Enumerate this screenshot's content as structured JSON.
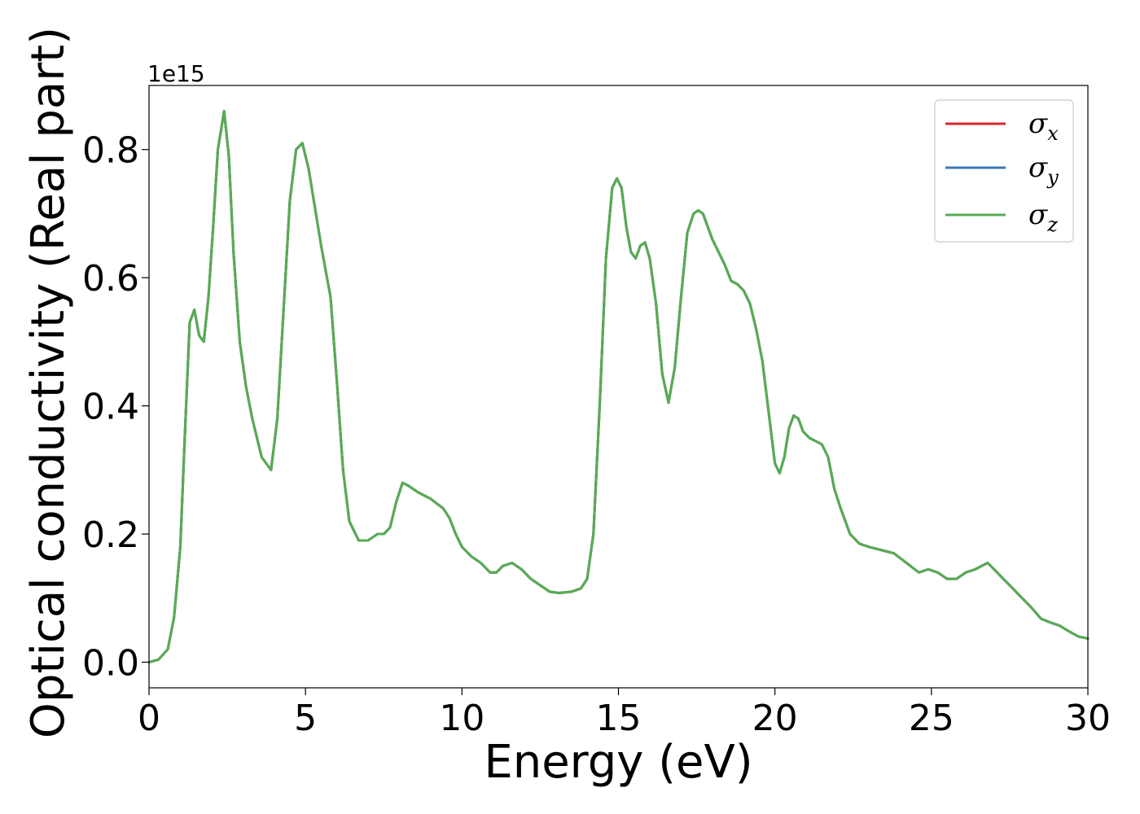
{
  "chart_data": {
    "type": "line",
    "xlabel": "Energy (eV)",
    "ylabel": "Optical conductivity (Real part)",
    "y_offset_label": "1e15",
    "xlim": [
      0,
      30
    ],
    "ylim": [
      -0.04,
      0.9
    ],
    "xticks": [
      0,
      5,
      10,
      15,
      20,
      25,
      30
    ],
    "xtick_labels": [
      "0",
      "5",
      "10",
      "15",
      "20",
      "25",
      "30"
    ],
    "yticks": [
      0.0,
      0.2,
      0.4,
      0.6,
      0.8
    ],
    "ytick_labels": [
      "0.0",
      "0.2",
      "0.4",
      "0.6",
      "0.8"
    ],
    "grid": false,
    "legend_position": "top-right",
    "series": [
      {
        "name": "σx",
        "symbol": "σ",
        "subscript": "x",
        "color": "#d62728",
        "data_ref": "shared"
      },
      {
        "name": "σy",
        "symbol": "σ",
        "subscript": "y",
        "color": "#3a78b5",
        "data_ref": "shared"
      },
      {
        "name": "σz",
        "symbol": "σ",
        "subscript": "z",
        "color": "#57ac52",
        "data_ref": "shared"
      }
    ],
    "x": [
      0,
      0.3,
      0.6,
      0.8,
      1.0,
      1.15,
      1.3,
      1.45,
      1.6,
      1.75,
      1.9,
      2.05,
      2.2,
      2.4,
      2.55,
      2.7,
      2.9,
      3.1,
      3.3,
      3.6,
      3.9,
      4.1,
      4.3,
      4.5,
      4.7,
      4.9,
      5.1,
      5.3,
      5.5,
      5.8,
      6.0,
      6.2,
      6.4,
      6.7,
      7.0,
      7.3,
      7.5,
      7.7,
      7.9,
      8.1,
      8.3,
      8.6,
      9.0,
      9.4,
      9.6,
      9.8,
      10.0,
      10.3,
      10.6,
      10.9,
      11.1,
      11.3,
      11.6,
      11.9,
      12.2,
      12.5,
      12.8,
      13.1,
      13.5,
      13.8,
      14.0,
      14.2,
      14.4,
      14.6,
      14.8,
      14.95,
      15.1,
      15.25,
      15.4,
      15.55,
      15.7,
      15.85,
      16.0,
      16.2,
      16.4,
      16.6,
      16.8,
      17.0,
      17.2,
      17.4,
      17.55,
      17.7,
      17.85,
      18.0,
      18.2,
      18.4,
      18.6,
      18.8,
      19.0,
      19.2,
      19.4,
      19.6,
      19.8,
      20.0,
      20.15,
      20.3,
      20.45,
      20.6,
      20.75,
      20.9,
      21.1,
      21.3,
      21.5,
      21.7,
      21.9,
      22.1,
      22.4,
      22.7,
      23.0,
      23.4,
      23.8,
      24.2,
      24.6,
      24.9,
      25.2,
      25.5,
      25.8,
      26.1,
      26.4,
      26.6,
      26.8,
      27.0,
      27.3,
      27.6,
      27.9,
      28.2,
      28.5,
      28.8,
      29.1,
      29.4,
      29.7,
      30.0
    ],
    "y": [
      0.0,
      0.004,
      0.02,
      0.07,
      0.18,
      0.36,
      0.53,
      0.55,
      0.51,
      0.5,
      0.57,
      0.68,
      0.8,
      0.86,
      0.79,
      0.64,
      0.5,
      0.43,
      0.38,
      0.32,
      0.3,
      0.38,
      0.55,
      0.72,
      0.8,
      0.81,
      0.77,
      0.71,
      0.65,
      0.57,
      0.44,
      0.3,
      0.22,
      0.19,
      0.19,
      0.2,
      0.2,
      0.21,
      0.25,
      0.28,
      0.275,
      0.265,
      0.255,
      0.24,
      0.225,
      0.2,
      0.18,
      0.165,
      0.155,
      0.14,
      0.14,
      0.15,
      0.155,
      0.145,
      0.13,
      0.12,
      0.11,
      0.108,
      0.11,
      0.115,
      0.13,
      0.2,
      0.4,
      0.63,
      0.74,
      0.755,
      0.74,
      0.68,
      0.64,
      0.63,
      0.65,
      0.655,
      0.63,
      0.56,
      0.45,
      0.405,
      0.46,
      0.57,
      0.67,
      0.7,
      0.705,
      0.7,
      0.68,
      0.66,
      0.64,
      0.62,
      0.595,
      0.59,
      0.58,
      0.56,
      0.52,
      0.47,
      0.39,
      0.31,
      0.295,
      0.32,
      0.365,
      0.385,
      0.38,
      0.36,
      0.35,
      0.345,
      0.34,
      0.32,
      0.27,
      0.24,
      0.2,
      0.185,
      0.18,
      0.175,
      0.17,
      0.155,
      0.14,
      0.145,
      0.14,
      0.13,
      0.13,
      0.14,
      0.145,
      0.15,
      0.155,
      0.145,
      0.13,
      0.115,
      0.1,
      0.085,
      0.068,
      0.062,
      0.057,
      0.048,
      0.04,
      0.037
    ]
  }
}
